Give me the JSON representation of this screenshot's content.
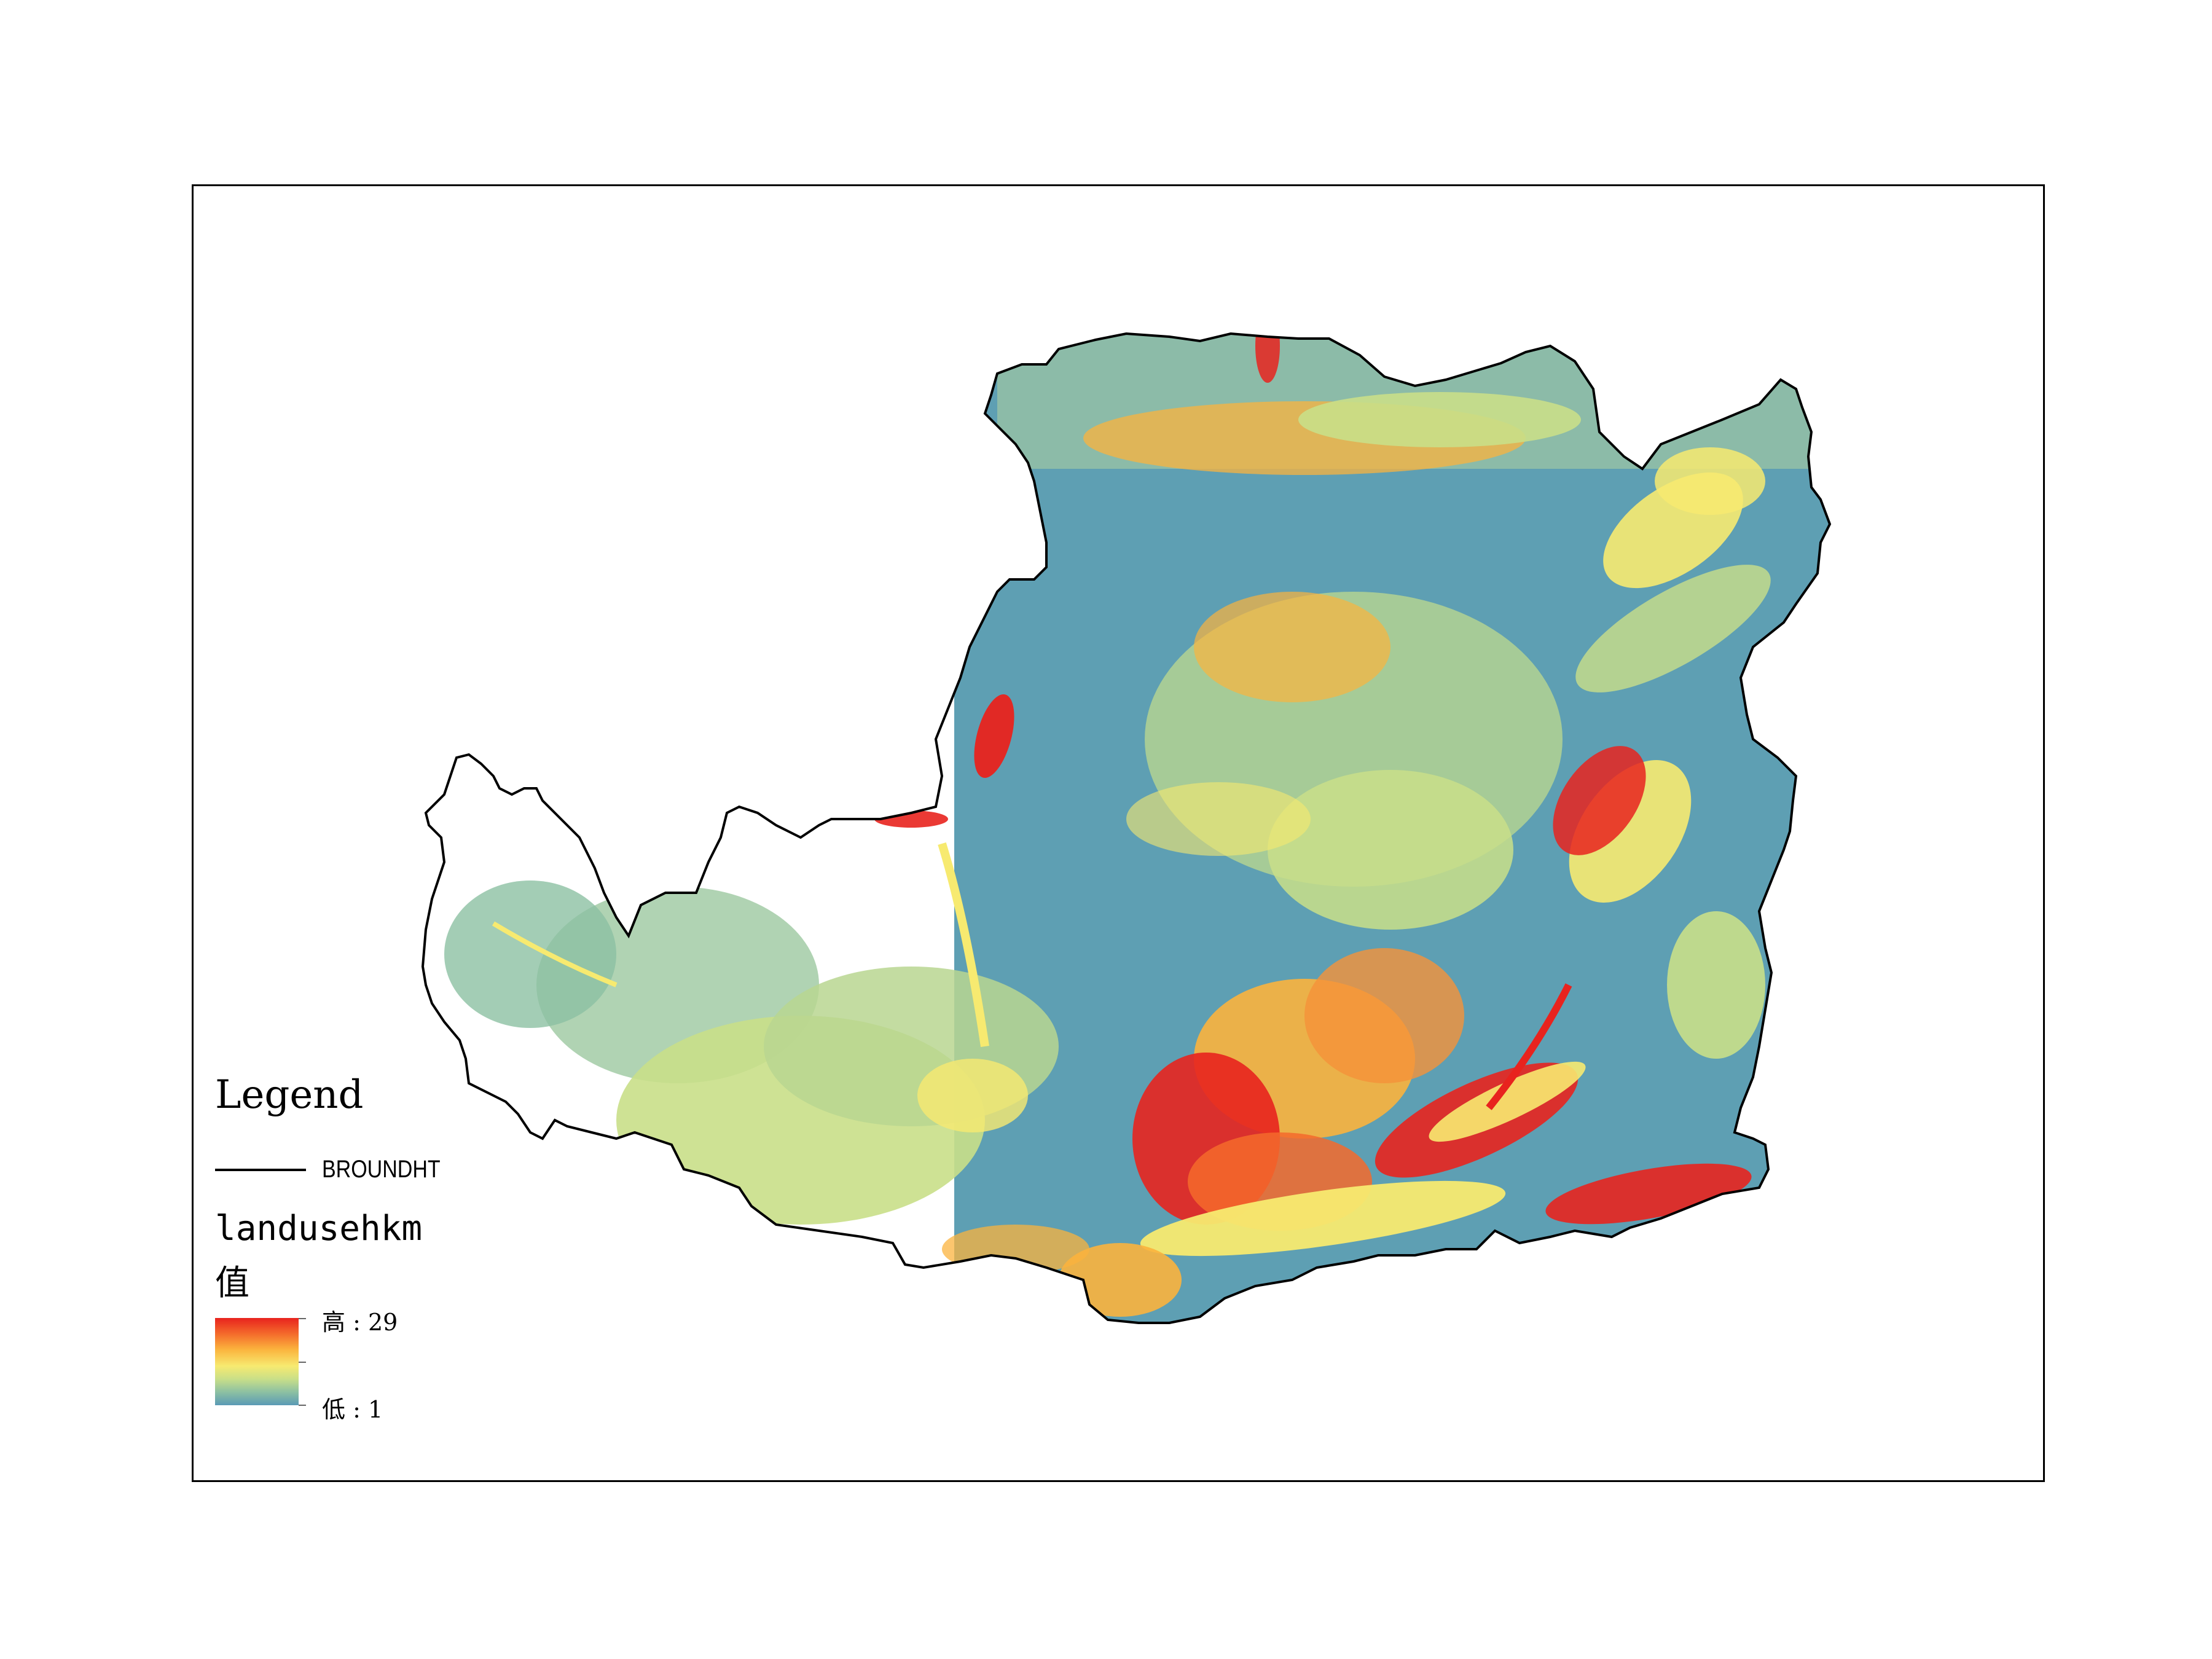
{
  "legend": {
    "title": "Legend",
    "boundary_layer": "BROUNDHT",
    "raster_layer": "landusehkm",
    "value_heading": "值",
    "high_label": "高 : 29",
    "low_label": "低 : 1"
  },
  "colors": {
    "high": "#e8231e",
    "mid_high": "#fbb33d",
    "mid": "#f7ea70",
    "mid_low": "#c9df88",
    "low": "#5a9ab5",
    "boundary": "#000000"
  }
}
